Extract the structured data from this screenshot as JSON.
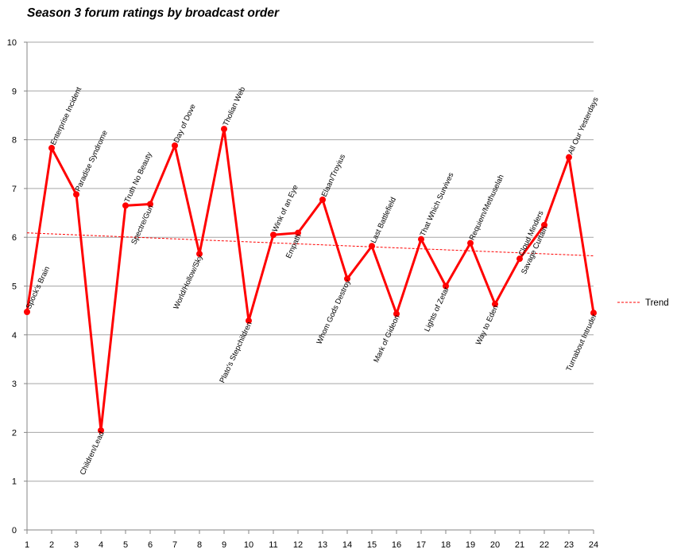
{
  "chart_data": {
    "type": "line",
    "title": "Season 3 forum ratings by broadcast order",
    "xlabel": "",
    "ylabel": "",
    "x": [
      1,
      2,
      3,
      4,
      5,
      6,
      7,
      8,
      9,
      10,
      11,
      12,
      13,
      14,
      15,
      16,
      17,
      18,
      19,
      20,
      21,
      22,
      23,
      24
    ],
    "xlim": [
      1,
      24
    ],
    "ylim": [
      0,
      10
    ],
    "yticks": [
      0,
      1,
      2,
      3,
      4,
      5,
      6,
      7,
      8,
      9,
      10
    ],
    "grid": "horizontal",
    "legend_position": "right",
    "series": [
      {
        "values": [
          4.47,
          7.83,
          6.88,
          2.04,
          6.65,
          6.68,
          7.88,
          5.66,
          8.22,
          4.29,
          6.05,
          6.09,
          6.77,
          5.15,
          5.82,
          4.43,
          5.96,
          5.0,
          5.88,
          4.63,
          5.56,
          6.25,
          7.64,
          4.45
        ],
        "labels": [
          "Spock's Brain",
          "Enterprise Incident",
          "Paradise Syndrome",
          "Children/Lead",
          "Truth No Beauty",
          "Spectre/Gun",
          "Day of Dove",
          "World/Hollow/Sky",
          "Tholian Web",
          "Plato's Stepchildren",
          "Wink of an Eye",
          "Empath",
          "Elaan/Troyius",
          "Whom Gods Destroy",
          "Last Battlefield",
          "Mark of Gideon",
          "That Which Survives",
          "Lights of Zetar",
          "Requiem/Methuselah",
          "Way to Eden",
          "Cloud Minders",
          "Savage Curtain",
          "All Our Yesterdays",
          "Turnabout Intruder"
        ],
        "label_side": [
          "above",
          "above",
          "above",
          "below",
          "above",
          "below",
          "above",
          "below",
          "above",
          "below",
          "above",
          "below",
          "above",
          "below",
          "above",
          "below",
          "above",
          "below",
          "above",
          "below",
          "above",
          "below",
          "above",
          "below"
        ],
        "color": "#ff0000"
      },
      {
        "name": "Trend",
        "values": [
          6.09,
          5.62
        ],
        "x": [
          1,
          24
        ],
        "color": "#ff0000",
        "style": "dashed"
      }
    ]
  }
}
